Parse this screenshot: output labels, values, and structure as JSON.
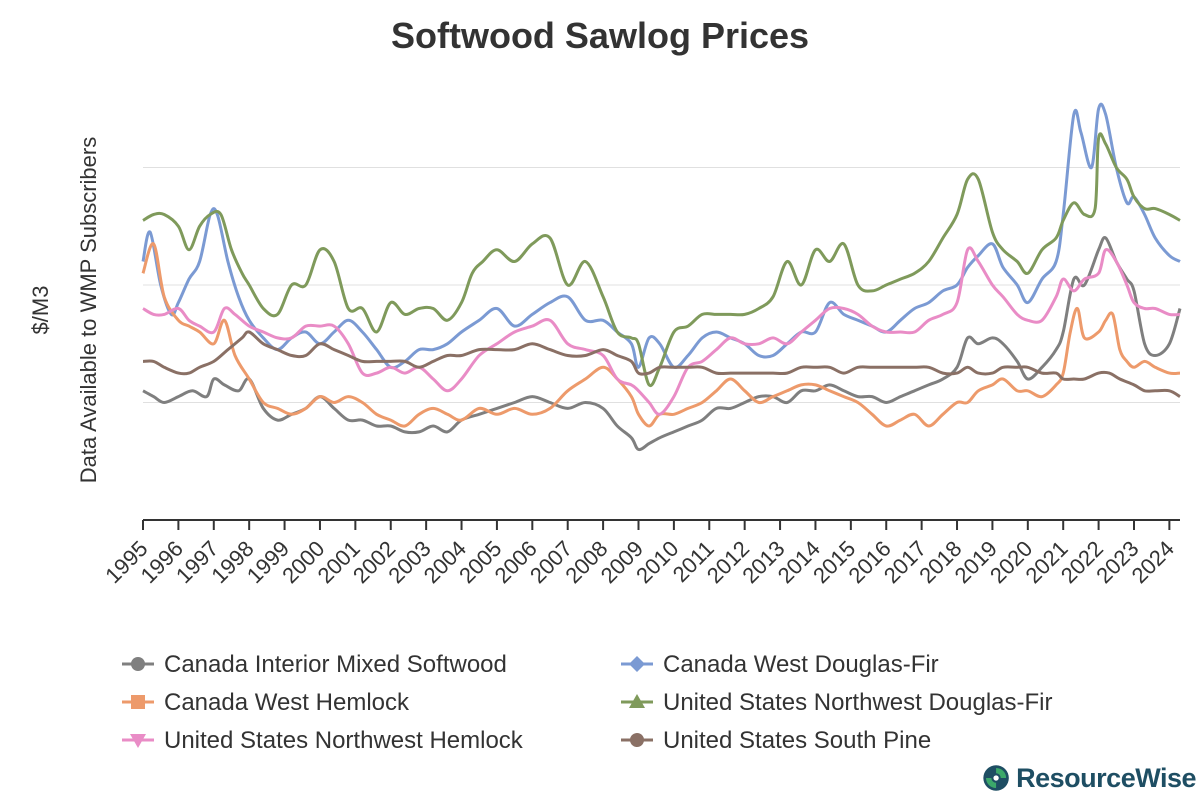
{
  "brand": {
    "name": "ResourceWise",
    "color": "#1e4e63",
    "accent": "#3ca86a"
  },
  "chart_data": {
    "type": "line",
    "title": "Softwood Sawlog Prices",
    "ylabel_line1": "$/M3",
    "ylabel_line2": "Data Available to WMP Subscribers",
    "y_tick_labels_shown": false,
    "grid": true,
    "legend_placement": "bottom",
    "x_tick_labels": [
      "1995",
      "1996",
      "1997",
      "1998",
      "1999",
      "2000",
      "2001",
      "2002",
      "2003",
      "2004",
      "2005",
      "2006",
      "2007",
      "2008",
      "2009",
      "2010",
      "2011",
      "2012",
      "2013",
      "2014",
      "2015",
      "2016",
      "2017",
      "2018",
      "2019",
      "2020",
      "2021",
      "2022",
      "2023",
      "2024"
    ],
    "xlim": [
      1995,
      2024.3
    ],
    "ylim": [
      0,
      4
    ],
    "note": "y values are on a relative scale (one unit per gridline); axis values are not printed",
    "series": [
      {
        "name": "Canada Interior Mixed Softwood",
        "color": "#7f7f7f",
        "marker": "circle",
        "x": [
          1995,
          1995.3,
          1995.6,
          1996,
          1996.4,
          1996.8,
          1997,
          1997.3,
          1997.7,
          1998,
          1998.4,
          1998.8,
          1999.2,
          1999.6,
          2000,
          2000.4,
          2000.8,
          2001.2,
          2001.6,
          2002,
          2002.4,
          2002.8,
          2003.2,
          2003.6,
          2004,
          2004.5,
          2005,
          2005.5,
          2006,
          2006.5,
          2007,
          2007.5,
          2008,
          2008.4,
          2008.8,
          2009,
          2009.3,
          2009.6,
          2010,
          2010.4,
          2010.8,
          2011.2,
          2011.6,
          2012,
          2012.4,
          2012.8,
          2013.2,
          2013.6,
          2014,
          2014.4,
          2014.8,
          2015.2,
          2015.6,
          2016,
          2016.4,
          2016.8,
          2017.2,
          2017.6,
          2018,
          2018.3,
          2018.6,
          2019,
          2019.3,
          2019.7,
          2020,
          2020.4,
          2020.8,
          2021,
          2021.3,
          2021.6,
          2022,
          2022.2,
          2022.5,
          2022.8,
          2023,
          2023.3,
          2023.6,
          2024,
          2024.3
        ],
        "y": [
          1.1,
          1.05,
          1.0,
          1.05,
          1.1,
          1.05,
          1.2,
          1.15,
          1.1,
          1.2,
          0.95,
          0.85,
          0.9,
          0.95,
          1.05,
          0.95,
          0.85,
          0.85,
          0.8,
          0.8,
          0.75,
          0.75,
          0.8,
          0.75,
          0.85,
          0.9,
          0.95,
          1.0,
          1.05,
          1.0,
          0.95,
          1.0,
          0.95,
          0.8,
          0.7,
          0.6,
          0.65,
          0.7,
          0.75,
          0.8,
          0.85,
          0.95,
          0.95,
          1.0,
          1.05,
          1.05,
          1.0,
          1.1,
          1.1,
          1.15,
          1.1,
          1.05,
          1.05,
          1.0,
          1.05,
          1.1,
          1.15,
          1.2,
          1.3,
          1.55,
          1.5,
          1.55,
          1.5,
          1.35,
          1.2,
          1.3,
          1.45,
          1.6,
          2.05,
          2.0,
          2.3,
          2.4,
          2.2,
          2.05,
          1.95,
          1.5,
          1.4,
          1.5,
          1.8
        ]
      },
      {
        "name": "Canada West Douglas-Fir",
        "color": "#7b9ad3",
        "marker": "diamond",
        "x": [
          1995,
          1995.2,
          1995.5,
          1995.8,
          1996,
          1996.3,
          1996.6,
          1996.9,
          1997.1,
          1997.4,
          1997.7,
          1998,
          1998.4,
          1998.8,
          1999.2,
          1999.6,
          2000,
          2000.4,
          2000.8,
          2001.2,
          2001.6,
          2002,
          2002.4,
          2002.8,
          2003.2,
          2003.6,
          2004,
          2004.5,
          2005,
          2005.5,
          2006,
          2006.5,
          2007,
          2007.5,
          2008,
          2008.4,
          2008.8,
          2009,
          2009.3,
          2009.6,
          2010,
          2010.4,
          2010.8,
          2011.2,
          2011.6,
          2012,
          2012.4,
          2012.8,
          2013.2,
          2013.6,
          2014,
          2014.4,
          2014.8,
          2015.2,
          2015.6,
          2016,
          2016.4,
          2016.8,
          2017.2,
          2017.6,
          2018,
          2018.3,
          2018.6,
          2019,
          2019.3,
          2019.7,
          2020,
          2020.4,
          2020.8,
          2021,
          2021.3,
          2021.5,
          2021.8,
          2022,
          2022.2,
          2022.5,
          2022.8,
          2023,
          2023.3,
          2023.6,
          2024,
          2024.3
        ],
        "y": [
          2.2,
          2.45,
          2.0,
          1.75,
          1.85,
          2.05,
          2.2,
          2.6,
          2.6,
          2.2,
          1.9,
          1.7,
          1.55,
          1.45,
          1.55,
          1.6,
          1.5,
          1.6,
          1.7,
          1.6,
          1.45,
          1.3,
          1.35,
          1.45,
          1.45,
          1.5,
          1.6,
          1.7,
          1.8,
          1.65,
          1.75,
          1.85,
          1.9,
          1.7,
          1.7,
          1.6,
          1.5,
          1.3,
          1.55,
          1.5,
          1.3,
          1.4,
          1.55,
          1.6,
          1.55,
          1.5,
          1.4,
          1.4,
          1.5,
          1.6,
          1.6,
          1.85,
          1.75,
          1.7,
          1.65,
          1.6,
          1.7,
          1.8,
          1.85,
          1.95,
          2.0,
          2.15,
          2.25,
          2.35,
          2.15,
          2.0,
          1.85,
          2.05,
          2.2,
          2.6,
          3.45,
          3.3,
          3.0,
          3.5,
          3.45,
          3.0,
          2.7,
          2.75,
          2.6,
          2.4,
          2.25,
          2.2
        ]
      },
      {
        "name": "Canada West Hemlock",
        "color": "#ed9a6b",
        "marker": "square",
        "x": [
          1995,
          1995.3,
          1995.6,
          1996,
          1996.3,
          1996.6,
          1997,
          1997.3,
          1997.6,
          1998,
          1998.4,
          1998.8,
          1999.2,
          1999.6,
          2000,
          2000.4,
          2000.8,
          2001.2,
          2001.6,
          2002,
          2002.4,
          2002.8,
          2003.2,
          2003.6,
          2004,
          2004.5,
          2005,
          2005.5,
          2006,
          2006.5,
          2007,
          2007.5,
          2008,
          2008.4,
          2008.8,
          2009,
          2009.3,
          2009.6,
          2010,
          2010.4,
          2010.8,
          2011.2,
          2011.6,
          2012,
          2012.4,
          2012.8,
          2013.2,
          2013.6,
          2014,
          2014.4,
          2014.8,
          2015.2,
          2015.6,
          2016,
          2016.4,
          2016.8,
          2017.2,
          2017.6,
          2018,
          2018.3,
          2018.6,
          2019,
          2019.3,
          2019.7,
          2020,
          2020.4,
          2020.8,
          2021,
          2021.2,
          2021.4,
          2021.6,
          2022,
          2022.2,
          2022.4,
          2022.6,
          2022.8,
          2023,
          2023.3,
          2023.6,
          2024,
          2024.3
        ],
        "y": [
          2.1,
          2.35,
          1.9,
          1.7,
          1.65,
          1.6,
          1.5,
          1.7,
          1.4,
          1.2,
          1.0,
          0.95,
          0.9,
          0.95,
          1.05,
          1.0,
          1.05,
          1.0,
          0.9,
          0.85,
          0.8,
          0.9,
          0.95,
          0.9,
          0.85,
          0.95,
          0.9,
          0.95,
          0.9,
          0.95,
          1.1,
          1.2,
          1.3,
          1.2,
          1.05,
          0.9,
          0.8,
          0.9,
          0.9,
          0.95,
          1.0,
          1.1,
          1.2,
          1.1,
          1.0,
          1.05,
          1.1,
          1.15,
          1.15,
          1.1,
          1.05,
          1.0,
          0.9,
          0.8,
          0.85,
          0.9,
          0.8,
          0.9,
          1.0,
          1.0,
          1.1,
          1.15,
          1.2,
          1.1,
          1.1,
          1.05,
          1.15,
          1.25,
          1.6,
          1.8,
          1.55,
          1.6,
          1.7,
          1.75,
          1.45,
          1.35,
          1.3,
          1.35,
          1.3,
          1.25,
          1.25
        ]
      },
      {
        "name": "United States Northwest Douglas-Fir",
        "color": "#7f9a5b",
        "marker": "triangle",
        "x": [
          1995,
          1995.3,
          1995.6,
          1996,
          1996.3,
          1996.6,
          1996.9,
          1997.2,
          1997.5,
          1997.8,
          1998,
          1998.4,
          1998.8,
          1999.2,
          1999.6,
          2000,
          2000.4,
          2000.8,
          2001.2,
          2001.6,
          2002,
          2002.4,
          2002.8,
          2003.2,
          2003.6,
          2004,
          2004.3,
          2004.6,
          2005,
          2005.5,
          2006,
          2006.5,
          2007,
          2007.5,
          2008,
          2008.4,
          2008.8,
          2009,
          2009.3,
          2009.6,
          2010,
          2010.4,
          2010.8,
          2011.2,
          2011.6,
          2012,
          2012.4,
          2012.8,
          2013.2,
          2013.6,
          2014,
          2014.4,
          2014.8,
          2015.2,
          2015.6,
          2016,
          2016.4,
          2016.8,
          2017.2,
          2017.6,
          2018,
          2018.3,
          2018.6,
          2019,
          2019.3,
          2019.7,
          2020,
          2020.4,
          2020.8,
          2021,
          2021.3,
          2021.6,
          2021.9,
          2022,
          2022.2,
          2022.5,
          2022.8,
          2023,
          2023.3,
          2023.6,
          2024,
          2024.3
        ],
        "y": [
          2.55,
          2.6,
          2.6,
          2.5,
          2.3,
          2.5,
          2.6,
          2.6,
          2.3,
          2.1,
          2.0,
          1.8,
          1.75,
          2.0,
          2.0,
          2.3,
          2.2,
          1.8,
          1.8,
          1.6,
          1.85,
          1.75,
          1.8,
          1.8,
          1.7,
          1.85,
          2.1,
          2.2,
          2.3,
          2.2,
          2.35,
          2.4,
          2.0,
          2.2,
          1.9,
          1.6,
          1.55,
          1.5,
          1.15,
          1.3,
          1.6,
          1.65,
          1.75,
          1.75,
          1.75,
          1.75,
          1.8,
          1.9,
          2.2,
          2.0,
          2.3,
          2.2,
          2.35,
          2.0,
          1.95,
          2.0,
          2.05,
          2.1,
          2.2,
          2.4,
          2.6,
          2.9,
          2.9,
          2.45,
          2.3,
          2.2,
          2.1,
          2.3,
          2.4,
          2.55,
          2.7,
          2.6,
          2.65,
          3.25,
          3.2,
          3.0,
          2.9,
          2.75,
          2.65,
          2.65,
          2.6,
          2.55
        ]
      },
      {
        "name": "United States Northwest Hemlock",
        "color": "#e98cc6",
        "marker": "triangle-down",
        "x": [
          1995,
          1995.3,
          1995.6,
          1996,
          1996.3,
          1996.6,
          1997,
          1997.3,
          1997.6,
          1998,
          1998.4,
          1998.8,
          1999.2,
          1999.6,
          2000,
          2000.4,
          2000.8,
          2001.2,
          2001.6,
          2002,
          2002.4,
          2002.8,
          2003.2,
          2003.6,
          2004,
          2004.5,
          2005,
          2005.5,
          2006,
          2006.5,
          2007,
          2007.5,
          2008,
          2008.4,
          2008.8,
          2009,
          2009.3,
          2009.6,
          2010,
          2010.4,
          2010.8,
          2011.2,
          2011.6,
          2012,
          2012.4,
          2012.8,
          2013.2,
          2013.6,
          2014,
          2014.4,
          2014.8,
          2015.2,
          2015.6,
          2016,
          2016.4,
          2016.8,
          2017.2,
          2017.6,
          2018,
          2018.3,
          2018.6,
          2019,
          2019.3,
          2019.7,
          2020,
          2020.4,
          2020.8,
          2021,
          2021.3,
          2021.6,
          2022,
          2022.2,
          2022.5,
          2022.8,
          2023,
          2023.3,
          2023.6,
          2024,
          2024.3
        ],
        "y": [
          1.8,
          1.75,
          1.75,
          1.8,
          1.7,
          1.65,
          1.6,
          1.8,
          1.75,
          1.65,
          1.6,
          1.55,
          1.55,
          1.65,
          1.65,
          1.65,
          1.5,
          1.25,
          1.25,
          1.3,
          1.25,
          1.3,
          1.2,
          1.1,
          1.2,
          1.4,
          1.5,
          1.6,
          1.65,
          1.7,
          1.5,
          1.45,
          1.4,
          1.2,
          1.15,
          1.1,
          1.0,
          0.9,
          1.05,
          1.3,
          1.35,
          1.45,
          1.55,
          1.5,
          1.5,
          1.55,
          1.5,
          1.6,
          1.7,
          1.8,
          1.8,
          1.75,
          1.65,
          1.6,
          1.6,
          1.6,
          1.7,
          1.75,
          1.85,
          2.3,
          2.2,
          2.0,
          1.9,
          1.75,
          1.7,
          1.7,
          1.9,
          2.05,
          1.95,
          2.05,
          2.1,
          2.3,
          2.2,
          2.0,
          1.85,
          1.8,
          1.8,
          1.75,
          1.75
        ]
      },
      {
        "name": "United States South Pine",
        "color": "#8a7065",
        "marker": "circle",
        "x": [
          1995,
          1995.3,
          1995.6,
          1996,
          1996.3,
          1996.6,
          1997,
          1997.4,
          1997.8,
          1998,
          1998.4,
          1998.8,
          1999.2,
          1999.6,
          2000,
          2000.4,
          2000.8,
          2001.2,
          2001.6,
          2002,
          2002.4,
          2002.8,
          2003.2,
          2003.6,
          2004,
          2004.5,
          2005,
          2005.5,
          2006,
          2006.5,
          2007,
          2007.5,
          2008,
          2008.4,
          2008.8,
          2009,
          2009.3,
          2009.6,
          2010,
          2010.4,
          2010.8,
          2011.2,
          2011.6,
          2012,
          2012.4,
          2012.8,
          2013.2,
          2013.6,
          2014,
          2014.4,
          2014.8,
          2015.2,
          2015.6,
          2016,
          2016.4,
          2016.8,
          2017.2,
          2017.6,
          2018,
          2018.3,
          2018.6,
          2019,
          2019.3,
          2019.7,
          2020,
          2020.4,
          2020.8,
          2021,
          2021.3,
          2021.6,
          2022,
          2022.3,
          2022.6,
          2023,
          2023.3,
          2023.6,
          2024,
          2024.3
        ],
        "y": [
          1.35,
          1.35,
          1.3,
          1.25,
          1.25,
          1.3,
          1.35,
          1.45,
          1.55,
          1.6,
          1.5,
          1.45,
          1.4,
          1.4,
          1.5,
          1.45,
          1.4,
          1.35,
          1.35,
          1.35,
          1.35,
          1.3,
          1.35,
          1.4,
          1.4,
          1.45,
          1.45,
          1.45,
          1.5,
          1.45,
          1.4,
          1.4,
          1.45,
          1.4,
          1.35,
          1.25,
          1.25,
          1.3,
          1.3,
          1.3,
          1.3,
          1.25,
          1.25,
          1.25,
          1.25,
          1.25,
          1.25,
          1.3,
          1.3,
          1.3,
          1.25,
          1.3,
          1.3,
          1.3,
          1.3,
          1.3,
          1.3,
          1.25,
          1.25,
          1.3,
          1.25,
          1.25,
          1.3,
          1.3,
          1.3,
          1.25,
          1.25,
          1.2,
          1.2,
          1.2,
          1.25,
          1.25,
          1.2,
          1.15,
          1.1,
          1.1,
          1.1,
          1.05
        ]
      }
    ]
  }
}
